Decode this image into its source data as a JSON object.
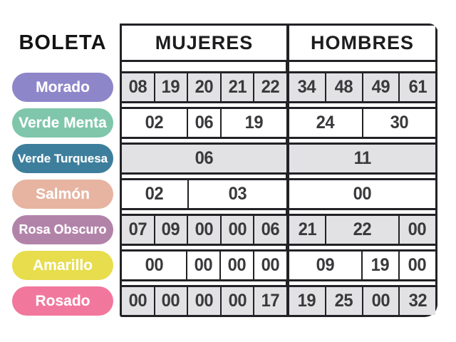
{
  "header": {
    "boleta": "BOLETA",
    "mujeres": "MUJERES",
    "hombres": "HOMBRES"
  },
  "palette": {
    "border": "#222226",
    "shaded_cell_bg": "#e2e1e4",
    "plain_cell_bg": "#ffffff",
    "number_text": "#39393c",
    "pill_text": "#ffffff"
  },
  "rows": [
    {
      "label": "Morado",
      "color": "#8d86c9",
      "shaded": true,
      "mujeres": [
        {
          "v": "08",
          "s": 1
        },
        {
          "v": "19",
          "s": 1
        },
        {
          "v": "20",
          "s": 1
        },
        {
          "v": "21",
          "s": 1
        },
        {
          "v": "22",
          "s": 1
        }
      ],
      "hombres": [
        {
          "v": "34",
          "s": 1
        },
        {
          "v": "48",
          "s": 1
        },
        {
          "v": "49",
          "s": 1
        },
        {
          "v": "61",
          "s": 1
        }
      ]
    },
    {
      "label": "Verde Menta",
      "color": "#7fc6ab",
      "shaded": false,
      "mujeres": [
        {
          "v": "02",
          "s": 2
        },
        {
          "v": "06",
          "s": 1
        },
        {
          "v": "19",
          "s": 2
        }
      ],
      "hombres": [
        {
          "v": "24",
          "s": 2
        },
        {
          "v": "30",
          "s": 2
        }
      ]
    },
    {
      "label": "Verde Turquesa",
      "color": "#3d7e9c",
      "shaded": true,
      "mujeres": [
        {
          "v": "06",
          "s": 5
        }
      ],
      "hombres": [
        {
          "v": "11",
          "s": 4
        }
      ]
    },
    {
      "label": "Salmón",
      "color": "#e6b4a1",
      "shaded": false,
      "mujeres": [
        {
          "v": "02",
          "s": 2
        },
        {
          "v": "03",
          "s": 3
        }
      ],
      "hombres": [
        {
          "v": "00",
          "s": 4
        }
      ]
    },
    {
      "label": "Rosa Obscuro",
      "color": "#b283a9",
      "shaded": true,
      "mujeres": [
        {
          "v": "07",
          "s": 1
        },
        {
          "v": "09",
          "s": 1
        },
        {
          "v": "00",
          "s": 1
        },
        {
          "v": "00",
          "s": 1
        },
        {
          "v": "06",
          "s": 1
        }
      ],
      "hombres": [
        {
          "v": "21",
          "s": 1
        },
        {
          "v": "22",
          "s": 2
        },
        {
          "v": "00",
          "s": 1
        }
      ]
    },
    {
      "label": "Amarillo",
      "color": "#e7dd4d",
      "shaded": false,
      "mujeres": [
        {
          "v": "00",
          "s": 2
        },
        {
          "v": "00",
          "s": 1
        },
        {
          "v": "00",
          "s": 1
        },
        {
          "v": "00",
          "s": 1
        }
      ],
      "hombres": [
        {
          "v": "09",
          "s": 2
        },
        {
          "v": "19",
          "s": 1
        },
        {
          "v": "00",
          "s": 1
        }
      ]
    },
    {
      "label": "Rosado",
      "color": "#f2779d",
      "shaded": true,
      "mujeres": [
        {
          "v": "00",
          "s": 1
        },
        {
          "v": "00",
          "s": 1
        },
        {
          "v": "00",
          "s": 1
        },
        {
          "v": "00",
          "s": 1
        },
        {
          "v": "17",
          "s": 1
        }
      ],
      "hombres": [
        {
          "v": "19",
          "s": 1
        },
        {
          "v": "25",
          "s": 1
        },
        {
          "v": "00",
          "s": 1
        },
        {
          "v": "32",
          "s": 1
        }
      ]
    }
  ]
}
